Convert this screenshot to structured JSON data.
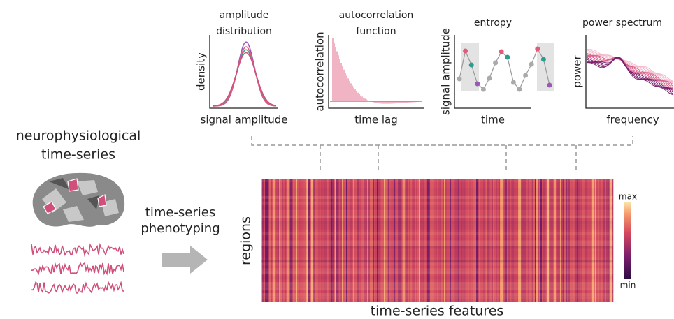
{
  "left": {
    "title": [
      "neurophysiological",
      "time-series"
    ]
  },
  "arrow": {
    "label": [
      "time-series",
      "phenotyping"
    ]
  },
  "panels": [
    {
      "title": [
        "amplitude",
        "distribution"
      ],
      "x_label": "signal amplitude",
      "y_label": "density"
    },
    {
      "title": [
        "autocorrelation",
        "function"
      ],
      "x_label": "time lag",
      "y_label": "autocorrelation"
    },
    {
      "title": [
        "entropy"
      ],
      "x_label": "time",
      "y_label": "signal amplitude"
    },
    {
      "title": [
        "power spectrum"
      ],
      "x_label": "frequency",
      "y_label": "power"
    }
  ],
  "heatmap": {
    "x_label": "time-series features",
    "y_label": "regions",
    "colorbar": {
      "max": "max",
      "min": "min"
    }
  }
}
